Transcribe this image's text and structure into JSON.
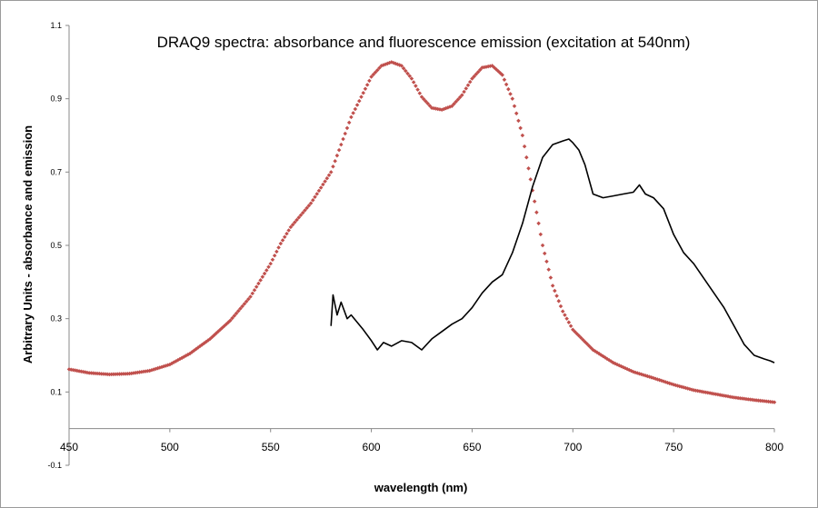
{
  "chart_data": {
    "type": "line",
    "title": "DRAQ9 spectra: absorbance and fluorescence emission (excitation at 540nm)",
    "xlabel": "wavelength (nm)",
    "ylabel": "Arbitrary Units - absorbance and emission",
    "xlim": [
      450,
      800
    ],
    "ylim": [
      -0.1,
      1.1
    ],
    "x_ticks": [
      "450",
      "500",
      "550",
      "600",
      "650",
      "700",
      "750",
      "800"
    ],
    "y_ticks": [
      "-0.1",
      "0.1",
      "0.3",
      "0.5",
      "0.7",
      "0.9",
      "1.1"
    ],
    "grid": false,
    "legend": "none",
    "series": [
      {
        "style": "markers",
        "color": "#c0504d",
        "x": [
          450,
          460,
          470,
          480,
          490,
          500,
          510,
          520,
          530,
          540,
          550,
          555,
          560,
          570,
          580,
          590,
          600,
          605,
          610,
          615,
          620,
          625,
          630,
          635,
          640,
          645,
          650,
          655,
          660,
          665,
          670,
          675,
          680,
          685,
          690,
          695,
          700,
          710,
          720,
          730,
          740,
          750,
          760,
          770,
          780,
          790,
          800
        ],
        "y": [
          0.162,
          0.152,
          0.148,
          0.15,
          0.158,
          0.175,
          0.205,
          0.245,
          0.295,
          0.36,
          0.45,
          0.505,
          0.55,
          0.615,
          0.7,
          0.85,
          0.96,
          0.99,
          1.0,
          0.99,
          0.955,
          0.905,
          0.875,
          0.87,
          0.88,
          0.91,
          0.955,
          0.985,
          0.99,
          0.965,
          0.9,
          0.8,
          0.65,
          0.5,
          0.39,
          0.32,
          0.27,
          0.215,
          0.18,
          0.155,
          0.138,
          0.12,
          0.105,
          0.095,
          0.085,
          0.078,
          0.072
        ]
      },
      {
        "style": "line",
        "color": "#000000",
        "x": [
          580,
          581,
          583,
          585,
          588,
          590,
          593,
          596,
          600,
          603,
          606,
          610,
          615,
          620,
          625,
          630,
          635,
          640,
          645,
          650,
          655,
          660,
          665,
          670,
          675,
          680,
          685,
          690,
          695,
          698,
          700,
          703,
          706,
          710,
          715,
          720,
          725,
          730,
          733,
          736,
          740,
          745,
          750,
          755,
          760,
          765,
          770,
          775,
          780,
          785,
          790,
          795,
          798,
          800
        ],
        "y": [
          0.28,
          0.365,
          0.31,
          0.345,
          0.3,
          0.31,
          0.29,
          0.27,
          0.24,
          0.215,
          0.235,
          0.225,
          0.24,
          0.235,
          0.215,
          0.245,
          0.265,
          0.285,
          0.3,
          0.33,
          0.37,
          0.4,
          0.42,
          0.48,
          0.56,
          0.66,
          0.74,
          0.775,
          0.785,
          0.79,
          0.78,
          0.76,
          0.72,
          0.64,
          0.63,
          0.635,
          0.64,
          0.645,
          0.665,
          0.64,
          0.63,
          0.6,
          0.53,
          0.48,
          0.45,
          0.41,
          0.37,
          0.33,
          0.28,
          0.23,
          0.2,
          0.19,
          0.185,
          0.18
        ]
      }
    ]
  }
}
